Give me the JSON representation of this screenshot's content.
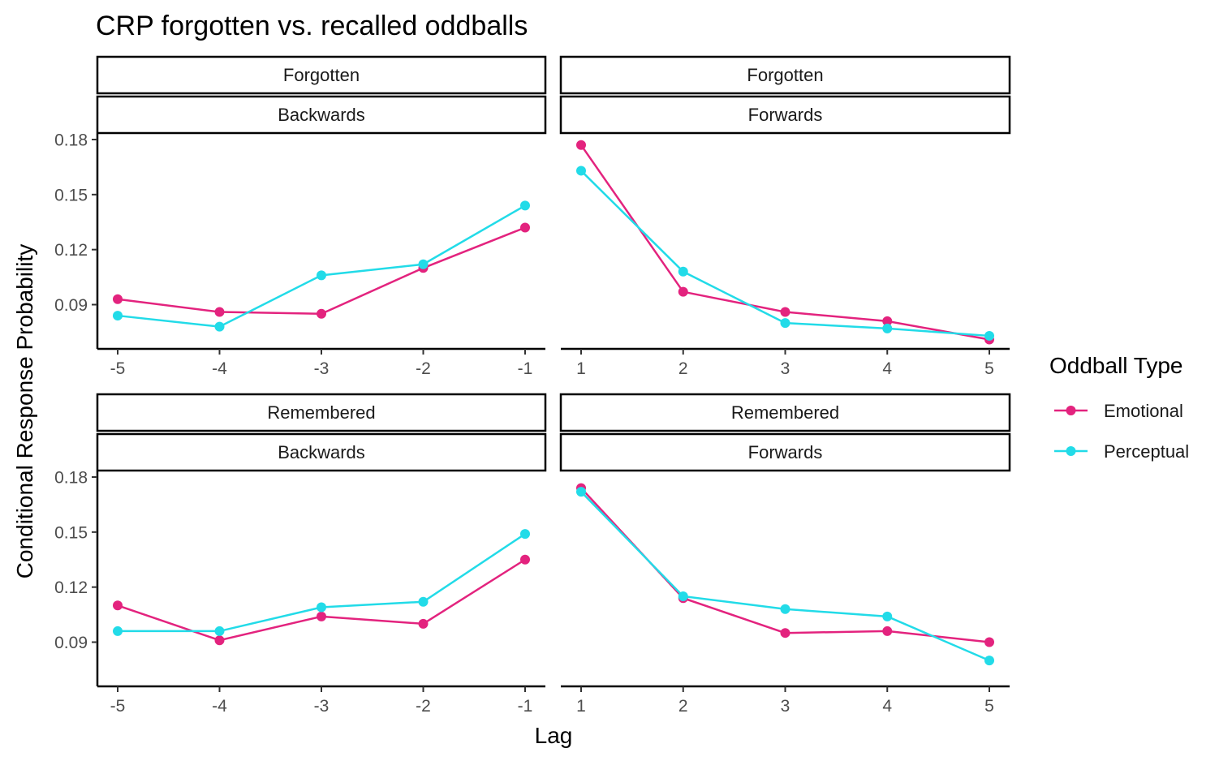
{
  "chart_data": {
    "type": "line",
    "title": "CRP forgotten vs. recalled oddballs",
    "xlabel": "Lag",
    "ylabel": "Conditional Response Probability",
    "ylim": [
      0.07,
      0.18
    ],
    "yticks": [
      0.09,
      0.12,
      0.15,
      0.18
    ],
    "ytick_labels": [
      "0.09",
      "0.12",
      "0.15",
      "0.18"
    ],
    "grid": false,
    "legend": {
      "title": "Oddball Type",
      "position": "right",
      "entries": [
        "Emotional",
        "Perceptual"
      ]
    },
    "colors": {
      "Emotional": "#e3237e",
      "Perceptual": "#22dbe8"
    },
    "panels": [
      {
        "strip_top": "Forgotten",
        "strip_bottom": "Backwards",
        "x": [
          -5,
          -4,
          -3,
          -2,
          -1
        ],
        "x_labels": [
          "-5",
          "-4",
          "-3",
          "-2",
          "-1"
        ],
        "series": [
          {
            "name": "Emotional",
            "values": [
              0.093,
              0.086,
              0.085,
              0.11,
              0.132
            ]
          },
          {
            "name": "Perceptual",
            "values": [
              0.084,
              0.078,
              0.106,
              0.112,
              0.144
            ]
          }
        ]
      },
      {
        "strip_top": "Forgotten",
        "strip_bottom": "Forwards",
        "x": [
          1,
          2,
          3,
          4,
          5
        ],
        "x_labels": [
          "1",
          "2",
          "3",
          "4",
          "5"
        ],
        "series": [
          {
            "name": "Emotional",
            "values": [
              0.177,
              0.097,
              0.086,
              0.081,
              0.071
            ]
          },
          {
            "name": "Perceptual",
            "values": [
              0.163,
              0.108,
              0.08,
              0.077,
              0.073
            ]
          }
        ]
      },
      {
        "strip_top": "Remembered",
        "strip_bottom": "Backwards",
        "x": [
          -5,
          -4,
          -3,
          -2,
          -1
        ],
        "x_labels": [
          "-5",
          "-4",
          "-3",
          "-2",
          "-1"
        ],
        "series": [
          {
            "name": "Emotional",
            "values": [
              0.11,
              0.091,
              0.104,
              0.1,
              0.135
            ]
          },
          {
            "name": "Perceptual",
            "values": [
              0.096,
              0.096,
              0.109,
              0.112,
              0.149
            ]
          }
        ]
      },
      {
        "strip_top": "Remembered",
        "strip_bottom": "Forwards",
        "x": [
          1,
          2,
          3,
          4,
          5
        ],
        "x_labels": [
          "1",
          "2",
          "3",
          "4",
          "5"
        ],
        "series": [
          {
            "name": "Emotional",
            "values": [
              0.174,
              0.114,
              0.095,
              0.096,
              0.09
            ]
          },
          {
            "name": "Perceptual",
            "values": [
              0.172,
              0.115,
              0.108,
              0.104,
              0.08
            ]
          }
        ]
      }
    ]
  }
}
